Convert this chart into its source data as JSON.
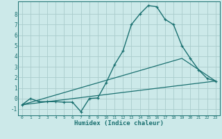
{
  "xlabel": "Humidex (Indice chaleur)",
  "background_color": "#cce9e9",
  "grid_color": "#aacccc",
  "line_color": "#1a7070",
  "xlim": [
    -0.5,
    23.5
  ],
  "ylim": [
    -1.6,
    9.2
  ],
  "xticks": [
    0,
    1,
    2,
    3,
    4,
    5,
    6,
    7,
    8,
    9,
    10,
    11,
    12,
    13,
    14,
    15,
    16,
    17,
    18,
    19,
    20,
    21,
    22,
    23
  ],
  "yticks": [
    -1,
    0,
    1,
    2,
    3,
    4,
    5,
    6,
    7,
    8
  ],
  "series": [
    {
      "x": [
        0,
        1,
        2,
        3,
        4,
        5,
        6,
        7,
        8,
        9,
        10,
        11,
        12,
        13,
        14,
        15,
        16,
        17,
        18,
        19,
        20,
        21,
        22,
        23
      ],
      "y": [
        -0.6,
        0.0,
        -0.3,
        -0.3,
        -0.3,
        -0.35,
        -0.35,
        -1.25,
        0.0,
        0.05,
        1.5,
        3.2,
        4.5,
        7.0,
        8.0,
        8.8,
        8.7,
        7.5,
        7.0,
        5.0,
        3.8,
        2.7,
        1.9,
        1.65
      ]
    },
    {
      "x": [
        0,
        23
      ],
      "y": [
        -0.6,
        1.65
      ]
    },
    {
      "x": [
        0,
        19,
        23
      ],
      "y": [
        -0.6,
        3.8,
        1.65
      ]
    }
  ]
}
